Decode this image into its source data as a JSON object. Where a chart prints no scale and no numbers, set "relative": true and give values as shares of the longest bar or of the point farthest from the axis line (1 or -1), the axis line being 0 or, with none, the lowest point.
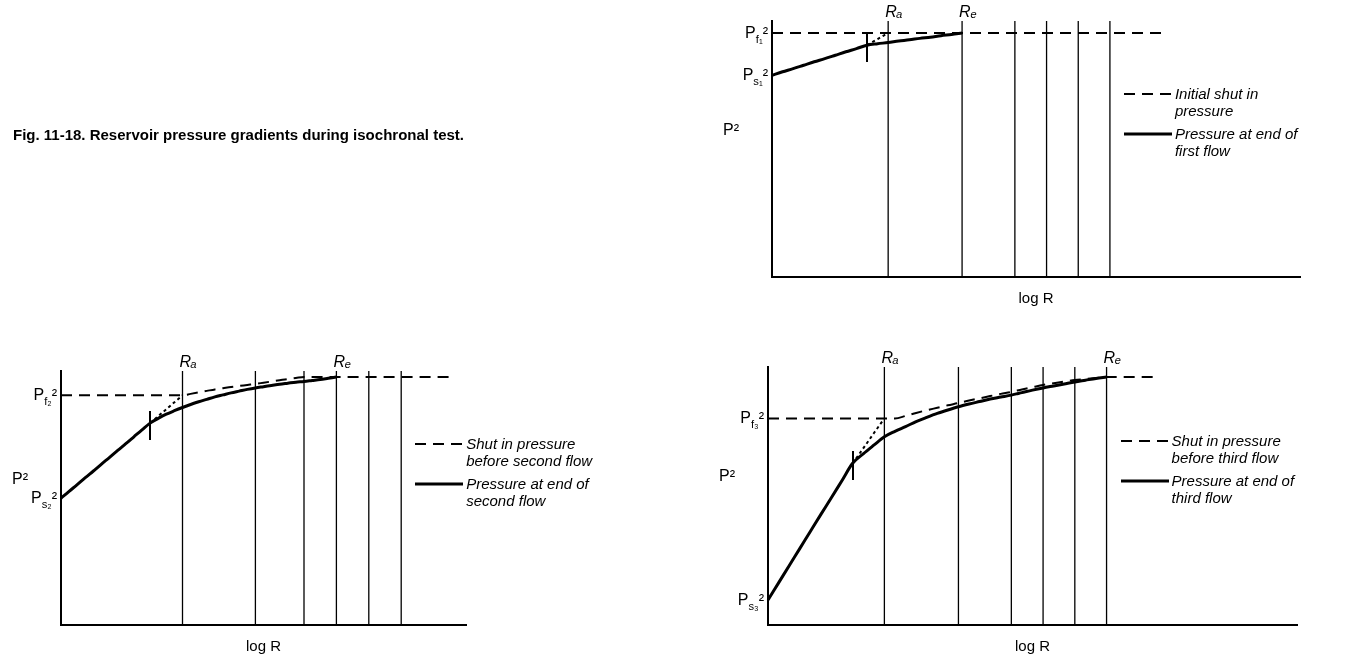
{
  "chart_data": [
    {
      "type": "line",
      "xlabel": "log R",
      "ylabel": "P²",
      "relative": true,
      "grid": "x",
      "legend": "right",
      "categories": [
        null,
        null,
        null,
        null,
        null,
        null,
        null,
        null,
        null,
        null,
        null,
        null,
        null,
        null,
        null,
        null,
        null,
        null,
        null,
        null,
        null,
        null,
        null,
        null,
        null,
        null,
        null,
        null,
        null,
        null,
        null,
        null,
        null,
        null,
        null,
        null,
        null,
        null,
        null,
        null,
        null,
        null,
        null,
        null,
        null,
        null,
        null,
        null,
        null,
        null,
        null
      ],
      "series": [
        {
          "name": "Initial shut in pressure",
          "color": "#000000",
          "line_style": "dashed",
          "values": [
            1,
            1,
            1,
            1,
            1,
            1,
            1,
            1,
            1,
            1,
            1,
            1,
            1,
            1,
            1,
            1,
            1,
            1,
            1,
            1,
            1,
            1,
            1,
            1,
            1,
            1,
            1,
            1,
            1,
            1,
            1,
            1,
            1,
            1,
            1,
            1,
            1,
            1,
            null,
            null,
            null,
            null,
            null,
            null,
            null,
            null,
            null,
            null,
            null,
            null,
            null
          ]
        },
        {
          "name": "Pressure at end of first flow",
          "color": "#000000",
          "line_style": "solid",
          "values": [
            0.827,
            0.841,
            0.854,
            0.868,
            0.882,
            0.895,
            0.909,
            0.923,
            0.936,
            0.95,
            0.956,
            0.961,
            0.967,
            0.972,
            0.978,
            0.983,
            0.989,
            0.994,
            1,
            null,
            null,
            null,
            null,
            null,
            null,
            null,
            null,
            null,
            null,
            null,
            null,
            null,
            null,
            null,
            null,
            null,
            null,
            null,
            null,
            null,
            null,
            null,
            null,
            null,
            null,
            null,
            null,
            null,
            null,
            null,
            null
          ]
        },
        {
          "color": "#000000",
          "line_style": "dotted",
          "values": [
            null,
            null,
            null,
            null,
            null,
            null,
            null,
            null,
            null,
            0.95,
            0.975,
            1,
            null,
            null,
            null,
            null,
            null,
            null,
            null,
            null,
            null,
            null,
            null,
            null,
            null,
            null,
            null,
            null,
            null,
            null,
            null,
            null,
            null,
            null,
            null,
            null,
            null,
            null,
            null,
            null,
            null,
            null,
            null,
            null,
            null,
            null,
            null,
            null,
            null,
            null,
            null
          ]
        }
      ],
      "annotations": [
        "P$_{f₁}$²",
        "P$_{s₁}$²",
        "Rₐ",
        "Rₑ"
      ]
    },
    {
      "type": "line",
      "title": "Fig. 11-18. Reservoir pressure gradients during isochronal test.",
      "xlabel": "log R",
      "ylabel": "P²",
      "relative": true,
      "grid": "x",
      "legend": "right",
      "categories": [
        null,
        null,
        null,
        null,
        null,
        null,
        null,
        null,
        null,
        null,
        null,
        null,
        null,
        null,
        null,
        null,
        null,
        null,
        null,
        null,
        null,
        null,
        null,
        null,
        null,
        null,
        null,
        null,
        null,
        null,
        null,
        null,
        null,
        null,
        null,
        null,
        null,
        null,
        null,
        null,
        null,
        null,
        null,
        null,
        null,
        null,
        null,
        null,
        null,
        null,
        null
      ],
      "series": [
        {
          "name": "Shut in pressure before second flow",
          "color": "#000000",
          "line_style": "dashed",
          "values": [
            0.926,
            0.926,
            0.926,
            0.926,
            0.926,
            0.926,
            0.926,
            0.926,
            0.926,
            0.926,
            0.926,
            0.926,
            0.926,
            0.926,
            0.926,
            0.926,
            0.932,
            0.938,
            0.944,
            0.95,
            0.955,
            0.96,
            0.964,
            0.968,
            0.972,
            0.977,
            0.982,
            0.987,
            0.992,
            0.996,
            1,
            1,
            1,
            1,
            1,
            1,
            1,
            1,
            1,
            1,
            1,
            1,
            1,
            1,
            1,
            1,
            1,
            1,
            1,
            null,
            null
          ]
        },
        {
          "name": "Pressure at end of second flow",
          "color": "#000000",
          "line_style": "solid",
          "values": [
            0.511,
            0.539,
            0.566,
            0.594,
            0.621,
            0.649,
            0.676,
            0.704,
            0.731,
            0.759,
            0.787,
            0.814,
            0.833,
            0.85,
            0.864,
            0.877,
            0.889,
            0.9,
            0.91,
            0.92,
            0.928,
            0.936,
            0.943,
            0.95,
            0.956,
            0.961,
            0.966,
            0.971,
            0.975,
            0.979,
            0.982,
            0.986,
            0.99,
            0.995,
            1,
            null,
            null,
            null,
            null,
            null,
            null,
            null,
            null,
            null,
            null,
            null,
            null,
            null,
            null,
            null,
            null
          ]
        },
        {
          "color": "#000000",
          "line_style": "dotted",
          "values": [
            null,
            null,
            null,
            null,
            null,
            null,
            null,
            null,
            null,
            null,
            null,
            0.814,
            0.842,
            0.87,
            0.898,
            0.926,
            null,
            null,
            null,
            null,
            null,
            null,
            null,
            null,
            null,
            null,
            null,
            null,
            null,
            null,
            null,
            null,
            null,
            null,
            null,
            null,
            null,
            null,
            null,
            null,
            null,
            null,
            null,
            null,
            null,
            null,
            null,
            null,
            null,
            null,
            null
          ]
        }
      ],
      "annotations": [
        "P$_{f₂}$²",
        "P$_{s₂}$²",
        "Rₐ",
        "Rₑ"
      ]
    },
    {
      "type": "line",
      "xlabel": "log R",
      "ylabel": "P²",
      "relative": true,
      "grid": "x",
      "legend": "right",
      "categories": [
        null,
        null,
        null,
        null,
        null,
        null,
        null,
        null,
        null,
        null,
        null,
        null,
        null,
        null,
        null,
        null,
        null,
        null,
        null,
        null,
        null,
        null,
        null,
        null,
        null,
        null,
        null,
        null,
        null,
        null,
        null,
        null,
        null,
        null,
        null,
        null,
        null,
        null,
        null,
        null,
        null,
        null,
        null,
        null,
        null,
        null,
        null,
        null,
        null,
        null,
        null
      ],
      "series": [
        {
          "name": "Shut in pressure before third flow",
          "color": "#000000",
          "line_style": "dashed",
          "values": [
            0.833,
            0.833,
            0.833,
            0.833,
            0.833,
            0.833,
            0.833,
            0.833,
            0.833,
            0.833,
            0.833,
            0.833,
            0.833,
            0.843,
            0.855,
            0.866,
            0.876,
            0.886,
            0.895,
            0.905,
            0.914,
            0.923,
            0.932,
            0.94,
            0.95,
            0.959,
            0.968,
            0.975,
            0.982,
            0.988,
            0.992,
            0.996,
            1,
            1,
            1,
            1,
            1,
            1,
            null,
            null,
            null,
            null,
            null,
            null,
            null,
            null,
            null,
            null,
            null,
            null,
            null
          ]
        },
        {
          "name": "Pressure at end of third flow",
          "color": "#000000",
          "line_style": "solid",
          "values": [
            0.101,
            0.17,
            0.239,
            0.308,
            0.377,
            0.446,
            0.514,
            0.583,
            0.652,
            0.69,
            0.725,
            0.759,
            0.781,
            0.8,
            0.82,
            0.837,
            0.853,
            0.867,
            0.88,
            0.891,
            0.901,
            0.911,
            0.919,
            0.927,
            0.937,
            0.947,
            0.956,
            0.964,
            0.972,
            0.98,
            0.987,
            0.994,
            1,
            null,
            null,
            null,
            null,
            null,
            null,
            null,
            null,
            null,
            null,
            null,
            null,
            null,
            null,
            null,
            null,
            null,
            null
          ]
        },
        {
          "color": "#000000",
          "line_style": "dotted",
          "values": [
            null,
            null,
            null,
            null,
            null,
            null,
            null,
            null,
            0.652,
            0.712,
            0.773,
            0.833,
            null,
            null,
            null,
            null,
            null,
            null,
            null,
            null,
            null,
            null,
            null,
            null,
            null,
            null,
            null,
            null,
            null,
            null,
            null,
            null,
            null,
            null,
            null,
            null,
            null,
            null,
            null,
            null,
            null,
            null,
            null,
            null,
            null,
            null,
            null,
            null,
            null,
            null,
            null
          ]
        }
      ],
      "annotations": [
        "P$_{f₃}$²",
        "P$_{s₃}$²",
        "Rₐ",
        "Rₑ"
      ]
    }
  ]
}
